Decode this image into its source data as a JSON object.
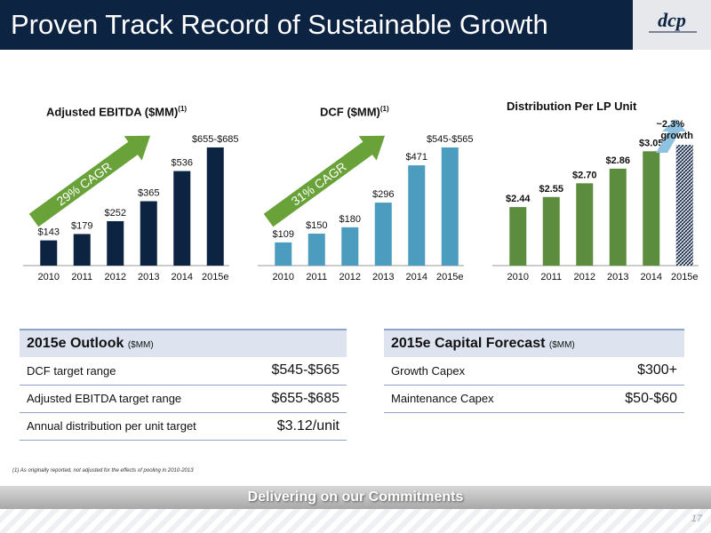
{
  "header": {
    "title": "Proven Track Record of Sustainable Growth",
    "logo_alt": "dcp"
  },
  "chart_data": [
    {
      "type": "bar",
      "title": "Adjusted EBITDA ($MM)",
      "title_note": "(1)",
      "categories": [
        "2010",
        "2011",
        "2012",
        "2013",
        "2014",
        "2015e"
      ],
      "values": [
        143,
        179,
        252,
        365,
        536,
        670
      ],
      "labels": [
        "$143",
        "$179",
        "$252",
        "$365",
        "$536",
        "$655-$685"
      ],
      "annotation": "29% CAGR",
      "color": "#0d2342",
      "ylim": [
        0,
        700
      ]
    },
    {
      "type": "bar",
      "title": "DCF ($MM)",
      "title_note": "(1)",
      "categories": [
        "2010",
        "2011",
        "2012",
        "2013",
        "2014",
        "2015e"
      ],
      "values": [
        109,
        150,
        180,
        296,
        471,
        555
      ],
      "labels": [
        "$109",
        "$150",
        "$180",
        "$296",
        "$471",
        "$545-$565"
      ],
      "annotation": "31% CAGR",
      "color": "#4b9cbf",
      "ylim": [
        0,
        580
      ]
    },
    {
      "type": "bar",
      "title": "Distribution Per LP Unit",
      "categories": [
        "2010",
        "2011",
        "2012",
        "2013",
        "2014",
        "2015e"
      ],
      "values": [
        2.44,
        2.55,
        2.7,
        2.86,
        3.05,
        3.12
      ],
      "labels": [
        "$2.44",
        "$2.55",
        "$2.70",
        "$2.86",
        "$3.05",
        ""
      ],
      "annotation": "~2.3% growth",
      "color": "#5c8d3e",
      "ylim": [
        1.8,
        3.15
      ]
    }
  ],
  "outlook": {
    "title": "2015e Outlook",
    "unit": "($MM)",
    "rows": [
      {
        "label": "DCF target range",
        "value": "$545-$565"
      },
      {
        "label": "Adjusted EBITDA target range",
        "value": "$655-$685"
      },
      {
        "label": "Annual distribution per unit target",
        "value": "$3.12/unit"
      }
    ]
  },
  "capital": {
    "title": "2015e Capital Forecast",
    "unit": "($MM)",
    "rows": [
      {
        "label": "Growth Capex",
        "value": "$300+"
      },
      {
        "label": "Maintenance Capex",
        "value": "$50-$60"
      }
    ]
  },
  "footnote": "(1)   As originally reported, not adjusted for the effects of pooling in 2010-2013",
  "banner": "Delivering on our Commitments",
  "page_number": "17"
}
